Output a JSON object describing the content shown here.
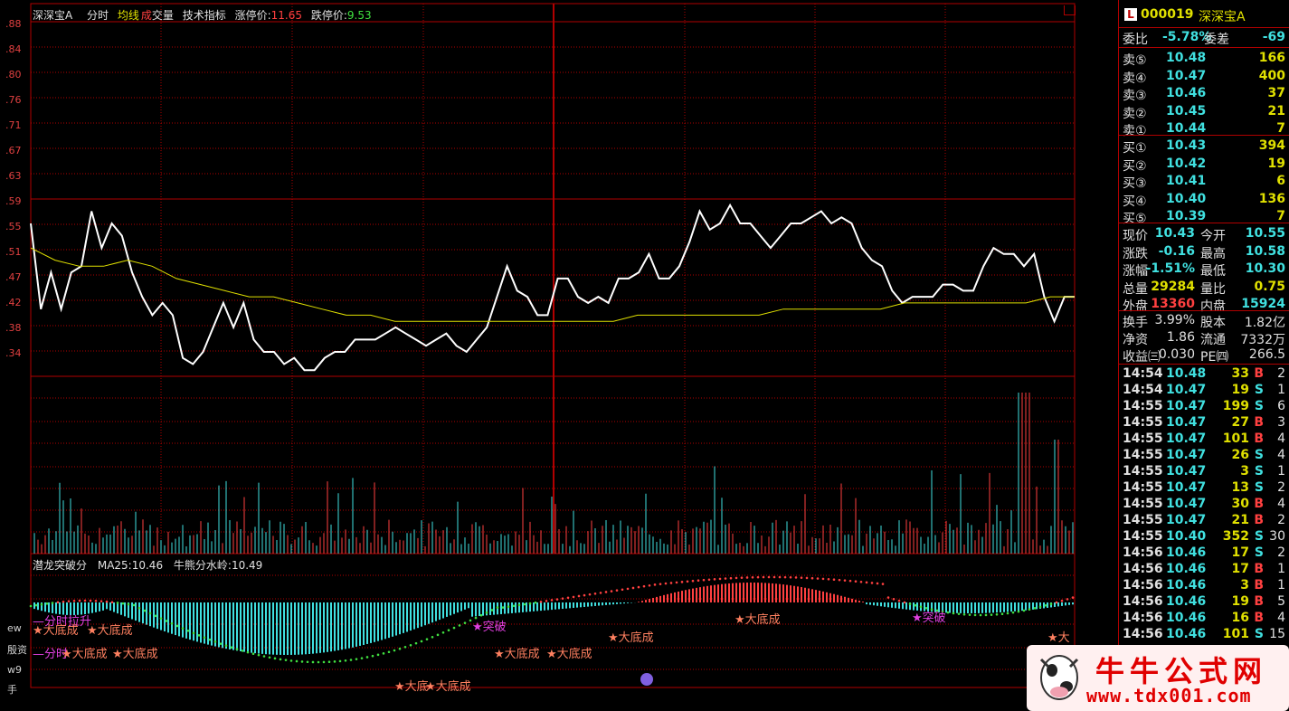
{
  "header": {
    "stock_name": "深深宝A",
    "mode": "分时",
    "avg_line": "均线",
    "cheng": "成",
    "volume": "交量",
    "tech": "技术指标",
    "limit_up_label": "涨停价:",
    "limit_up": "11.65",
    "limit_down_label": "跌停价:",
    "limit_down": "9.53",
    "corner_icon": "window-corner-icon"
  },
  "y_labels": [
    ".88",
    ".84",
    ".80",
    ".76",
    ".71",
    ".67",
    ".63",
    ".59",
    ".55",
    ".51",
    ".47",
    ".42",
    ".38",
    ".34"
  ],
  "side_labels": [
    "ew",
    "殷资",
    "w9",
    "手"
  ],
  "indicator": {
    "name": "潜龙突破分",
    "ma": "MA25:10.46",
    "bull": "牛熊分水岭:10.49"
  },
  "signals": [
    {
      "text": "—分时拉升",
      "color": "#e040e0"
    },
    {
      "text": "★大底成",
      "color": "#ff8060"
    },
    {
      "text": "★大底成",
      "color": "#ff8060"
    },
    {
      "text": "—分时",
      "color": "#e040e0"
    },
    {
      "text": "★大底成",
      "color": "#ff8060"
    },
    {
      "text": "★大底成",
      "color": "#ff8060"
    },
    {
      "text": "★大底",
      "color": "#ff8060"
    },
    {
      "text": "★大底成",
      "color": "#ff8060"
    },
    {
      "text": "★突破",
      "color": "#e040e0"
    },
    {
      "text": "★大底成",
      "color": "#ff8060"
    },
    {
      "text": "★大底成",
      "color": "#ff8060"
    },
    {
      "text": "★大底成",
      "color": "#ff8060"
    },
    {
      "text": "★大底成",
      "color": "#ff8060"
    },
    {
      "text": "★突破",
      "color": "#e040e0"
    },
    {
      "text": "★大",
      "color": "#ff8060"
    }
  ],
  "chart_data": {
    "type": "line",
    "title": "",
    "ylim": [
      10.3,
      10.88
    ],
    "price": [
      10.55,
      10.41,
      10.47,
      10.41,
      10.47,
      10.48,
      10.57,
      10.51,
      10.55,
      10.53,
      10.47,
      10.43,
      10.4,
      10.42,
      10.4,
      10.33,
      10.32,
      10.34,
      10.38,
      10.42,
      10.38,
      10.42,
      10.36,
      10.34,
      10.34,
      10.32,
      10.33,
      10.31,
      10.31,
      10.33,
      10.34,
      10.34,
      10.36,
      10.36,
      10.36,
      10.37,
      10.38,
      10.37,
      10.36,
      10.35,
      10.36,
      10.37,
      10.35,
      10.34,
      10.36,
      10.38,
      10.43,
      10.48,
      10.44,
      10.43,
      10.4,
      10.4,
      10.46,
      10.46,
      10.43,
      10.42,
      10.43,
      10.42,
      10.46,
      10.46,
      10.47,
      10.5,
      10.46,
      10.46,
      10.48,
      10.52,
      10.57,
      10.54,
      10.55,
      10.58,
      10.55,
      10.55,
      10.53,
      10.51,
      10.53,
      10.55,
      10.55,
      10.56,
      10.57,
      10.55,
      10.56,
      10.55,
      10.51,
      10.49,
      10.48,
      10.44,
      10.42,
      10.43,
      10.43,
      10.43,
      10.45,
      10.45,
      10.44,
      10.44,
      10.48,
      10.51,
      10.5,
      10.5,
      10.48,
      10.5,
      10.43,
      10.39,
      10.43,
      10.43
    ],
    "avg": [
      10.51,
      10.49,
      10.48,
      10.48,
      10.49,
      10.48,
      10.46,
      10.45,
      10.44,
      10.43,
      10.43,
      10.42,
      10.41,
      10.4,
      10.4,
      10.39,
      10.39,
      10.39,
      10.39,
      10.39,
      10.39,
      10.39,
      10.39,
      10.39,
      10.39,
      10.4,
      10.4,
      10.4,
      10.4,
      10.4,
      10.4,
      10.41,
      10.41,
      10.41,
      10.41,
      10.41,
      10.42,
      10.42,
      10.42,
      10.42,
      10.42,
      10.42,
      10.43,
      10.43
    ],
    "volume_note": "",
    "xlabel": "",
    "ylabel": ""
  },
  "panel": {
    "code": "000019",
    "name": "深深宝A",
    "wb_label": "委比",
    "wb": "-5.78%",
    "wc_label": "委差",
    "wc": "-69",
    "sells": [
      {
        "l": "卖⑤",
        "p": "10.48",
        "v": "166"
      },
      {
        "l": "卖④",
        "p": "10.47",
        "v": "400"
      },
      {
        "l": "卖③",
        "p": "10.46",
        "v": "37"
      },
      {
        "l": "卖②",
        "p": "10.45",
        "v": "21"
      },
      {
        "l": "卖①",
        "p": "10.44",
        "v": "7"
      }
    ],
    "buys": [
      {
        "l": "买①",
        "p": "10.43",
        "v": "394"
      },
      {
        "l": "买②",
        "p": "10.42",
        "v": "19"
      },
      {
        "l": "买③",
        "p": "10.41",
        "v": "6"
      },
      {
        "l": "买④",
        "p": "10.40",
        "v": "136"
      },
      {
        "l": "买⑤",
        "p": "10.39",
        "v": "7"
      }
    ],
    "stats": [
      {
        "a": "现价",
        "av": "10.43",
        "b": "今开",
        "bv": "10.55"
      },
      {
        "a": "涨跌",
        "av": "-0.16",
        "b": "最高",
        "bv": "10.58"
      },
      {
        "a": "涨幅",
        "av": "-1.51%",
        "b": "最低",
        "bv": "10.30"
      },
      {
        "a": "总量",
        "av": "29284",
        "b": "量比",
        "bv": "0.75"
      },
      {
        "a": "外盘",
        "av": "13360",
        "b": "内盘",
        "bv": "15924"
      }
    ],
    "fund": [
      {
        "a": "换手",
        "av": "3.99%",
        "b": "股本",
        "bv": "1.82亿"
      },
      {
        "a": "净资",
        "av": "1.86",
        "b": "流通",
        "bv": "7332万"
      },
      {
        "a": "收益㈢",
        "av": "0.030",
        "b": "PE㈣",
        "bv": "266.5"
      }
    ],
    "ticks": [
      {
        "t": "14:54",
        "p": "10.48",
        "v": "33",
        "s": "B",
        "n": "2"
      },
      {
        "t": "14:54",
        "p": "10.47",
        "v": "19",
        "s": "S",
        "n": "1"
      },
      {
        "t": "14:55",
        "p": "10.47",
        "v": "199",
        "s": "S",
        "n": "6"
      },
      {
        "t": "14:55",
        "p": "10.47",
        "v": "27",
        "s": "B",
        "n": "3"
      },
      {
        "t": "14:55",
        "p": "10.47",
        "v": "101",
        "s": "B",
        "n": "4"
      },
      {
        "t": "14:55",
        "p": "10.47",
        "v": "26",
        "s": "S",
        "n": "4"
      },
      {
        "t": "14:55",
        "p": "10.47",
        "v": "3",
        "s": "S",
        "n": "1"
      },
      {
        "t": "14:55",
        "p": "10.47",
        "v": "13",
        "s": "S",
        "n": "2"
      },
      {
        "t": "14:55",
        "p": "10.47",
        "v": "30",
        "s": "B",
        "n": "4"
      },
      {
        "t": "14:55",
        "p": "10.47",
        "v": "21",
        "s": "B",
        "n": "2"
      },
      {
        "t": "14:55",
        "p": "10.40",
        "v": "352",
        "s": "S",
        "n": "30"
      },
      {
        "t": "14:56",
        "p": "10.46",
        "v": "17",
        "s": "S",
        "n": "2"
      },
      {
        "t": "14:56",
        "p": "10.46",
        "v": "17",
        "s": "B",
        "n": "1"
      },
      {
        "t": "14:56",
        "p": "10.46",
        "v": "3",
        "s": "B",
        "n": "1"
      },
      {
        "t": "14:56",
        "p": "10.46",
        "v": "19",
        "s": "B",
        "n": "5"
      },
      {
        "t": "14:56",
        "p": "10.46",
        "v": "16",
        "s": "B",
        "n": "4"
      },
      {
        "t": "14:56",
        "p": "10.46",
        "v": "101",
        "s": "S",
        "n": "15"
      }
    ]
  },
  "watermark": {
    "title": "牛牛公式网",
    "url": "www.tdx001.com"
  },
  "colors": {
    "grid": "#b00000",
    "price": "#ffffff",
    "avg": "#e0e000",
    "up": "#ff4040",
    "down": "#40e0e0",
    "yellow": "#e0e000"
  }
}
